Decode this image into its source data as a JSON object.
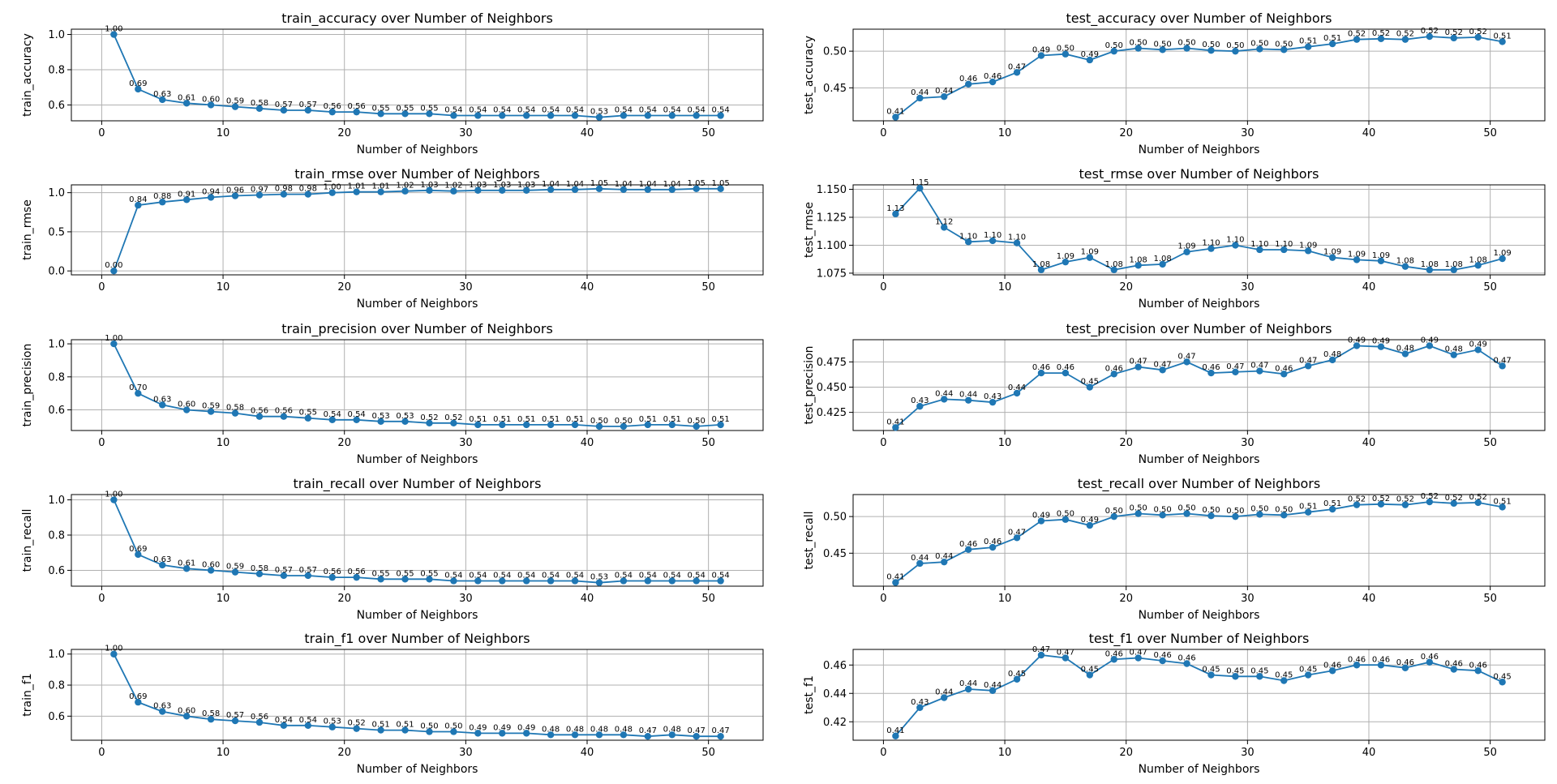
{
  "colors": {
    "series": "#1f77b4",
    "grid": "#b0b0b0",
    "frame": "#000000"
  },
  "chart_data": [
    {
      "type": "line",
      "title": "train_accuracy over Number of Neighbors",
      "xlabel": "Number of Neighbors",
      "ylabel": "train_accuracy",
      "xlim": [
        -2.5,
        54.5
      ],
      "ylim": [
        0.51,
        1.03
      ],
      "yticks": [
        "0.6",
        "0.8",
        "1.0"
      ],
      "xticks": [
        "0",
        "10",
        "20",
        "30",
        "40",
        "50"
      ],
      "grid": true,
      "x": [
        1,
        3,
        5,
        7,
        9,
        11,
        13,
        15,
        17,
        19,
        21,
        23,
        25,
        27,
        29,
        31,
        33,
        35,
        37,
        39,
        41,
        43,
        45,
        47,
        49,
        51
      ],
      "y": [
        1.0,
        0.69,
        0.63,
        0.61,
        0.6,
        0.59,
        0.58,
        0.57,
        0.57,
        0.56,
        0.56,
        0.55,
        0.55,
        0.55,
        0.54,
        0.54,
        0.54,
        0.54,
        0.54,
        0.54,
        0.53,
        0.54,
        0.54,
        0.54,
        0.54,
        0.54
      ],
      "labels": [
        "1.00",
        "0.69",
        "0.63",
        "0.61",
        "0.60",
        "0.59",
        "0.58",
        "0.57",
        "0.57",
        "0.56",
        "0.56",
        "0.55",
        "0.55",
        "0.55",
        "0.54",
        "0.54",
        "0.54",
        "0.54",
        "0.54",
        "0.54",
        "0.53",
        "0.54",
        "0.54",
        "0.54",
        "0.54",
        "0.54"
      ]
    },
    {
      "type": "line",
      "title": "test_accuracy over Number of Neighbors",
      "xlabel": "Number of Neighbors",
      "ylabel": "test_accuracy",
      "xlim": [
        -2.5,
        54.5
      ],
      "ylim": [
        0.405,
        0.53
      ],
      "yticks": [
        "0.45",
        "0.50"
      ],
      "xticks": [
        "0",
        "10",
        "20",
        "30",
        "40",
        "50"
      ],
      "grid": true,
      "x": [
        1,
        3,
        5,
        7,
        9,
        11,
        13,
        15,
        17,
        19,
        21,
        23,
        25,
        27,
        29,
        31,
        33,
        35,
        37,
        39,
        41,
        43,
        45,
        47,
        49,
        51
      ],
      "y": [
        0.41,
        0.436,
        0.438,
        0.455,
        0.458,
        0.471,
        0.494,
        0.496,
        0.488,
        0.5,
        0.504,
        0.502,
        0.504,
        0.501,
        0.5,
        0.503,
        0.502,
        0.506,
        0.51,
        0.516,
        0.517,
        0.516,
        0.52,
        0.518,
        0.519,
        0.513
      ],
      "labels": [
        "0.41",
        "0.44",
        "0.44",
        "0.46",
        "0.46",
        "0.47",
        "0.49",
        "0.50",
        "0.49",
        "0.50",
        "0.50",
        "0.50",
        "0.50",
        "0.50",
        "0.50",
        "0.50",
        "0.50",
        "0.51",
        "0.51",
        "0.52",
        "0.52",
        "0.52",
        "0.52",
        "0.52",
        "0.52",
        "0.51"
      ]
    },
    {
      "type": "line",
      "title": "train_rmse over Number of Neighbors",
      "xlabel": "Number of Neighbors",
      "ylabel": "train_rmse",
      "xlim": [
        -2.5,
        54.5
      ],
      "ylim": [
        -0.05,
        1.1
      ],
      "yticks": [
        "0.0",
        "0.5",
        "1.0"
      ],
      "xticks": [
        "0",
        "10",
        "20",
        "30",
        "40",
        "50"
      ],
      "grid": true,
      "x": [
        1,
        3,
        5,
        7,
        9,
        11,
        13,
        15,
        17,
        19,
        21,
        23,
        25,
        27,
        29,
        31,
        33,
        35,
        37,
        39,
        41,
        43,
        45,
        47,
        49,
        51
      ],
      "y": [
        0.0,
        0.84,
        0.88,
        0.91,
        0.94,
        0.96,
        0.97,
        0.98,
        0.98,
        1.0,
        1.01,
        1.01,
        1.02,
        1.03,
        1.02,
        1.03,
        1.03,
        1.03,
        1.04,
        1.04,
        1.05,
        1.04,
        1.04,
        1.04,
        1.05,
        1.05
      ],
      "labels": [
        "0.00",
        "0.84",
        "0.88",
        "0.91",
        "0.94",
        "0.96",
        "0.97",
        "0.98",
        "0.98",
        "1.00",
        "1.01",
        "1.01",
        "1.02",
        "1.03",
        "1.02",
        "1.03",
        "1.03",
        "1.03",
        "1.04",
        "1.04",
        "1.05",
        "1.04",
        "1.04",
        "1.04",
        "1.05",
        "1.05"
      ]
    },
    {
      "type": "line",
      "title": "test_rmse over Number of Neighbors",
      "xlabel": "Number of Neighbors",
      "ylabel": "test_rmse",
      "xlim": [
        -2.5,
        54.5
      ],
      "ylim": [
        1.0735,
        1.154
      ],
      "yticks": [
        "1.075",
        "1.100",
        "1.125",
        "1.150"
      ],
      "xticks": [
        "0",
        "10",
        "20",
        "30",
        "40",
        "50"
      ],
      "grid": true,
      "x": [
        1,
        3,
        5,
        7,
        9,
        11,
        13,
        15,
        17,
        19,
        21,
        23,
        25,
        27,
        29,
        31,
        33,
        35,
        37,
        39,
        41,
        43,
        45,
        47,
        49,
        51
      ],
      "y": [
        1.128,
        1.151,
        1.116,
        1.103,
        1.104,
        1.102,
        1.078,
        1.085,
        1.089,
        1.078,
        1.082,
        1.083,
        1.094,
        1.097,
        1.1,
        1.096,
        1.096,
        1.095,
        1.089,
        1.087,
        1.086,
        1.081,
        1.078,
        1.078,
        1.082,
        1.088
      ],
      "labels": [
        "1.13",
        "1.15",
        "1.12",
        "1.10",
        "1.10",
        "1.10",
        "1.08",
        "1.09",
        "1.09",
        "1.08",
        "1.08",
        "1.08",
        "1.09",
        "1.10",
        "1.10",
        "1.10",
        "1.10",
        "1.09",
        "1.09",
        "1.09",
        "1.09",
        "1.08",
        "1.08",
        "1.08",
        "1.08",
        "1.09"
      ]
    },
    {
      "type": "line",
      "title": "train_precision over Number of Neighbors",
      "xlabel": "Number of Neighbors",
      "ylabel": "train_precision",
      "xlim": [
        -2.5,
        54.5
      ],
      "ylim": [
        0.475,
        1.025
      ],
      "yticks": [
        "0.6",
        "0.8",
        "1.0"
      ],
      "xticks": [
        "0",
        "10",
        "20",
        "30",
        "40",
        "50"
      ],
      "grid": true,
      "x": [
        1,
        3,
        5,
        7,
        9,
        11,
        13,
        15,
        17,
        19,
        21,
        23,
        25,
        27,
        29,
        31,
        33,
        35,
        37,
        39,
        41,
        43,
        45,
        47,
        49,
        51
      ],
      "y": [
        1.0,
        0.7,
        0.63,
        0.6,
        0.59,
        0.58,
        0.56,
        0.56,
        0.55,
        0.54,
        0.54,
        0.53,
        0.53,
        0.52,
        0.52,
        0.51,
        0.51,
        0.51,
        0.51,
        0.51,
        0.5,
        0.5,
        0.51,
        0.51,
        0.5,
        0.51
      ],
      "labels": [
        "1.00",
        "0.70",
        "0.63",
        "0.60",
        "0.59",
        "0.58",
        "0.56",
        "0.56",
        "0.55",
        "0.54",
        "0.54",
        "0.53",
        "0.53",
        "0.52",
        "0.52",
        "0.51",
        "0.51",
        "0.51",
        "0.51",
        "0.51",
        "0.50",
        "0.50",
        "0.51",
        "0.51",
        "0.50",
        "0.51"
      ]
    },
    {
      "type": "line",
      "title": "test_precision over Number of Neighbors",
      "xlabel": "Number of Neighbors",
      "ylabel": "test_precision",
      "xlim": [
        -2.5,
        54.5
      ],
      "ylim": [
        0.407,
        0.497
      ],
      "yticks": [
        "0.425",
        "0.450",
        "0.475"
      ],
      "xticks": [
        "0",
        "10",
        "20",
        "30",
        "40",
        "50"
      ],
      "grid": true,
      "x": [
        1,
        3,
        5,
        7,
        9,
        11,
        13,
        15,
        17,
        19,
        21,
        23,
        25,
        27,
        29,
        31,
        33,
        35,
        37,
        39,
        41,
        43,
        45,
        47,
        49,
        51
      ],
      "y": [
        0.41,
        0.431,
        0.438,
        0.437,
        0.435,
        0.444,
        0.464,
        0.464,
        0.45,
        0.463,
        0.47,
        0.467,
        0.475,
        0.464,
        0.465,
        0.466,
        0.463,
        0.471,
        0.477,
        0.491,
        0.49,
        0.483,
        0.491,
        0.482,
        0.487,
        0.471
      ],
      "labels": [
        "0.41",
        "0.43",
        "0.44",
        "0.44",
        "0.43",
        "0.44",
        "0.46",
        "0.46",
        "0.45",
        "0.46",
        "0.47",
        "0.47",
        "0.47",
        "0.46",
        "0.47",
        "0.47",
        "0.46",
        "0.47",
        "0.48",
        "0.49",
        "0.49",
        "0.48",
        "0.49",
        "0.48",
        "0.49",
        "0.47"
      ]
    },
    {
      "type": "line",
      "title": "train_recall over Number of Neighbors",
      "xlabel": "Number of Neighbors",
      "ylabel": "train_recall",
      "xlim": [
        -2.5,
        54.5
      ],
      "ylim": [
        0.51,
        1.03
      ],
      "yticks": [
        "0.6",
        "0.8",
        "1.0"
      ],
      "xticks": [
        "0",
        "10",
        "20",
        "30",
        "40",
        "50"
      ],
      "grid": true,
      "x": [
        1,
        3,
        5,
        7,
        9,
        11,
        13,
        15,
        17,
        19,
        21,
        23,
        25,
        27,
        29,
        31,
        33,
        35,
        37,
        39,
        41,
        43,
        45,
        47,
        49,
        51
      ],
      "y": [
        1.0,
        0.69,
        0.63,
        0.61,
        0.6,
        0.59,
        0.58,
        0.57,
        0.57,
        0.56,
        0.56,
        0.55,
        0.55,
        0.55,
        0.54,
        0.54,
        0.54,
        0.54,
        0.54,
        0.54,
        0.53,
        0.54,
        0.54,
        0.54,
        0.54,
        0.54
      ],
      "labels": [
        "1.00",
        "0.69",
        "0.63",
        "0.61",
        "0.60",
        "0.59",
        "0.58",
        "0.57",
        "0.57",
        "0.56",
        "0.56",
        "0.55",
        "0.55",
        "0.55",
        "0.54",
        "0.54",
        "0.54",
        "0.54",
        "0.54",
        "0.54",
        "0.53",
        "0.54",
        "0.54",
        "0.54",
        "0.54",
        "0.54"
      ]
    },
    {
      "type": "line",
      "title": "test_recall over Number of Neighbors",
      "xlabel": "Number of Neighbors",
      "ylabel": "test_recall",
      "xlim": [
        -2.5,
        54.5
      ],
      "ylim": [
        0.405,
        0.53
      ],
      "yticks": [
        "0.45",
        "0.50"
      ],
      "xticks": [
        "0",
        "10",
        "20",
        "30",
        "40",
        "50"
      ],
      "grid": true,
      "x": [
        1,
        3,
        5,
        7,
        9,
        11,
        13,
        15,
        17,
        19,
        21,
        23,
        25,
        27,
        29,
        31,
        33,
        35,
        37,
        39,
        41,
        43,
        45,
        47,
        49,
        51
      ],
      "y": [
        0.41,
        0.436,
        0.438,
        0.455,
        0.458,
        0.471,
        0.494,
        0.496,
        0.488,
        0.5,
        0.504,
        0.502,
        0.504,
        0.501,
        0.5,
        0.503,
        0.502,
        0.506,
        0.51,
        0.516,
        0.517,
        0.516,
        0.52,
        0.518,
        0.519,
        0.513
      ],
      "labels": [
        "0.41",
        "0.44",
        "0.44",
        "0.46",
        "0.46",
        "0.47",
        "0.49",
        "0.50",
        "0.49",
        "0.50",
        "0.50",
        "0.50",
        "0.50",
        "0.50",
        "0.50",
        "0.50",
        "0.50",
        "0.51",
        "0.51",
        "0.52",
        "0.52",
        "0.52",
        "0.52",
        "0.52",
        "0.52",
        "0.51"
      ]
    },
    {
      "type": "line",
      "title": "train_f1 over Number of Neighbors",
      "xlabel": "Number of Neighbors",
      "ylabel": "train_f1",
      "xlim": [
        -2.5,
        54.5
      ],
      "ylim": [
        0.445,
        1.03
      ],
      "yticks": [
        "0.6",
        "0.8",
        "1.0"
      ],
      "xticks": [
        "0",
        "10",
        "20",
        "30",
        "40",
        "50"
      ],
      "grid": true,
      "x": [
        1,
        3,
        5,
        7,
        9,
        11,
        13,
        15,
        17,
        19,
        21,
        23,
        25,
        27,
        29,
        31,
        33,
        35,
        37,
        39,
        41,
        43,
        45,
        47,
        49,
        51
      ],
      "y": [
        1.0,
        0.69,
        0.63,
        0.6,
        0.58,
        0.57,
        0.56,
        0.54,
        0.54,
        0.53,
        0.52,
        0.51,
        0.51,
        0.5,
        0.5,
        0.49,
        0.49,
        0.49,
        0.48,
        0.48,
        0.48,
        0.48,
        0.47,
        0.48,
        0.47,
        0.47
      ],
      "labels": [
        "1.00",
        "0.69",
        "0.63",
        "0.60",
        "0.58",
        "0.57",
        "0.56",
        "0.54",
        "0.54",
        "0.53",
        "0.52",
        "0.51",
        "0.51",
        "0.50",
        "0.50",
        "0.49",
        "0.49",
        "0.49",
        "0.48",
        "0.48",
        "0.48",
        "0.48",
        "0.47",
        "0.48",
        "0.47",
        "0.47"
      ]
    },
    {
      "type": "line",
      "title": "test_f1 over Number of Neighbors",
      "xlabel": "Number of Neighbors",
      "ylabel": "test_f1",
      "xlim": [
        -2.5,
        54.5
      ],
      "ylim": [
        0.407,
        0.471
      ],
      "yticks": [
        "0.42",
        "0.44",
        "0.46"
      ],
      "xticks": [
        "0",
        "10",
        "20",
        "30",
        "40",
        "50"
      ],
      "grid": true,
      "x": [
        1,
        3,
        5,
        7,
        9,
        11,
        13,
        15,
        17,
        19,
        21,
        23,
        25,
        27,
        29,
        31,
        33,
        35,
        37,
        39,
        41,
        43,
        45,
        47,
        49,
        51
      ],
      "y": [
        0.41,
        0.43,
        0.437,
        0.443,
        0.442,
        0.45,
        0.467,
        0.465,
        0.453,
        0.464,
        0.465,
        0.463,
        0.461,
        0.453,
        0.452,
        0.452,
        0.449,
        0.453,
        0.456,
        0.46,
        0.46,
        0.458,
        0.462,
        0.457,
        0.456,
        0.448
      ],
      "labels": [
        "0.41",
        "0.43",
        "0.44",
        "0.44",
        "0.44",
        "0.45",
        "0.47",
        "0.47",
        "0.45",
        "0.46",
        "0.47",
        "0.46",
        "0.46",
        "0.45",
        "0.45",
        "0.45",
        "0.45",
        "0.45",
        "0.46",
        "0.46",
        "0.46",
        "0.46",
        "0.46",
        "0.46",
        "0.46",
        "0.45"
      ]
    }
  ]
}
